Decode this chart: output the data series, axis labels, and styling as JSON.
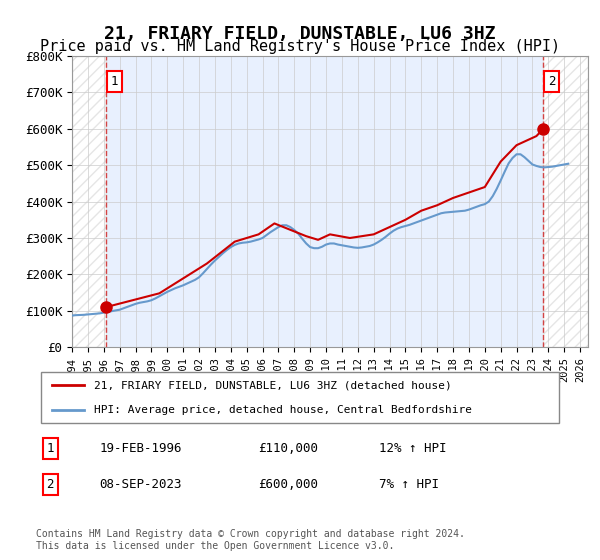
{
  "title": "21, FRIARY FIELD, DUNSTABLE, LU6 3HZ",
  "subtitle": "Price paid vs. HM Land Registry's House Price Index (HPI)",
  "title_fontsize": 13,
  "subtitle_fontsize": 11,
  "xlabel": "",
  "ylabel": "",
  "ylim": [
    0,
    800000
  ],
  "yticks": [
    0,
    100000,
    200000,
    300000,
    400000,
    500000,
    600000,
    700000,
    800000
  ],
  "ytick_labels": [
    "£0",
    "£100K",
    "£200K",
    "£300K",
    "£400K",
    "£500K",
    "£600K",
    "£700K",
    "£800K"
  ],
  "xlim_start": 1994.0,
  "xlim_end": 2026.5,
  "xticks": [
    1994,
    1995,
    1996,
    1997,
    1998,
    1999,
    2000,
    2001,
    2002,
    2003,
    2004,
    2005,
    2006,
    2007,
    2008,
    2009,
    2010,
    2011,
    2012,
    2013,
    2014,
    2015,
    2016,
    2017,
    2018,
    2019,
    2020,
    2021,
    2022,
    2023,
    2024,
    2025,
    2026
  ],
  "sale1_x": 1996.13,
  "sale1_y": 110000,
  "sale1_label": "1",
  "sale2_x": 2023.69,
  "sale2_y": 600000,
  "sale2_label": "2",
  "sale1_date": "19-FEB-1996",
  "sale1_price": "£110,000",
  "sale1_hpi": "12% ↑ HPI",
  "sale2_date": "08-SEP-2023",
  "sale2_price": "£600,000",
  "sale2_hpi": "7% ↑ HPI",
  "hatch_color": "#cccccc",
  "grid_color": "#cccccc",
  "background_color": "#ffffff",
  "plot_bg_color": "#e8f0fe",
  "red_line_color": "#cc0000",
  "blue_line_color": "#6699cc",
  "legend1_label": "21, FRIARY FIELD, DUNSTABLE, LU6 3HZ (detached house)",
  "legend2_label": "HPI: Average price, detached house, Central Bedfordshire",
  "footer": "Contains HM Land Registry data © Crown copyright and database right 2024.\nThis data is licensed under the Open Government Licence v3.0.",
  "hpi_data_x": [
    1994.0,
    1994.25,
    1994.5,
    1994.75,
    1995.0,
    1995.25,
    1995.5,
    1995.75,
    1996.0,
    1996.25,
    1996.5,
    1996.75,
    1997.0,
    1997.25,
    1997.5,
    1997.75,
    1998.0,
    1998.25,
    1998.5,
    1998.75,
    1999.0,
    1999.25,
    1999.5,
    1999.75,
    2000.0,
    2000.25,
    2000.5,
    2000.75,
    2001.0,
    2001.25,
    2001.5,
    2001.75,
    2002.0,
    2002.25,
    2002.5,
    2002.75,
    2003.0,
    2003.25,
    2003.5,
    2003.75,
    2004.0,
    2004.25,
    2004.5,
    2004.75,
    2005.0,
    2005.25,
    2005.5,
    2005.75,
    2006.0,
    2006.25,
    2006.5,
    2006.75,
    2007.0,
    2007.25,
    2007.5,
    2007.75,
    2008.0,
    2008.25,
    2008.5,
    2008.75,
    2009.0,
    2009.25,
    2009.5,
    2009.75,
    2010.0,
    2010.25,
    2010.5,
    2010.75,
    2011.0,
    2011.25,
    2011.5,
    2011.75,
    2012.0,
    2012.25,
    2012.5,
    2012.75,
    2013.0,
    2013.25,
    2013.5,
    2013.75,
    2014.0,
    2014.25,
    2014.5,
    2014.75,
    2015.0,
    2015.25,
    2015.5,
    2015.75,
    2016.0,
    2016.25,
    2016.5,
    2016.75,
    2017.0,
    2017.25,
    2017.5,
    2017.75,
    2018.0,
    2018.25,
    2018.5,
    2018.75,
    2019.0,
    2019.25,
    2019.5,
    2019.75,
    2020.0,
    2020.25,
    2020.5,
    2020.75,
    2021.0,
    2021.25,
    2021.5,
    2021.75,
    2022.0,
    2022.25,
    2022.5,
    2022.75,
    2023.0,
    2023.25,
    2023.5,
    2023.75,
    2024.0,
    2024.25,
    2024.5,
    2024.75,
    2025.0,
    2025.25
  ],
  "hpi_data_y": [
    87000,
    88000,
    88500,
    89000,
    90000,
    91000,
    92000,
    93000,
    95000,
    97000,
    99000,
    101000,
    103000,
    107000,
    111000,
    115000,
    119000,
    122000,
    124000,
    126000,
    129000,
    134000,
    140000,
    146000,
    152000,
    157000,
    162000,
    166000,
    170000,
    175000,
    180000,
    185000,
    192000,
    203000,
    215000,
    227000,
    238000,
    248000,
    258000,
    267000,
    275000,
    281000,
    285000,
    287000,
    288000,
    290000,
    293000,
    296000,
    300000,
    308000,
    316000,
    323000,
    330000,
    335000,
    335000,
    330000,
    322000,
    312000,
    298000,
    285000,
    275000,
    272000,
    272000,
    276000,
    282000,
    285000,
    285000,
    282000,
    280000,
    278000,
    276000,
    274000,
    273000,
    274000,
    276000,
    278000,
    282000,
    288000,
    295000,
    303000,
    312000,
    320000,
    326000,
    330000,
    333000,
    336000,
    340000,
    344000,
    348000,
    352000,
    356000,
    360000,
    364000,
    368000,
    370000,
    371000,
    372000,
    373000,
    374000,
    375000,
    378000,
    382000,
    386000,
    390000,
    393000,
    400000,
    415000,
    435000,
    458000,
    482000,
    505000,
    520000,
    530000,
    530000,
    522000,
    512000,
    502000,
    498000,
    495000,
    494000,
    495000,
    496000,
    498000,
    500000,
    502000,
    504000
  ],
  "price_data_x": [
    1996.13,
    1999.5,
    2002.5,
    2004.25,
    2005.75,
    2006.75,
    2008.75,
    2009.5,
    2010.25,
    2011.5,
    2013.0,
    2014.0,
    2015.0,
    2016.0,
    2017.0,
    2018.0,
    2019.0,
    2020.0,
    2021.0,
    2022.0,
    2022.75,
    2023.0,
    2023.25,
    2023.69
  ],
  "price_data_y": [
    110000,
    148000,
    230000,
    290000,
    310000,
    340000,
    305000,
    295000,
    310000,
    300000,
    310000,
    330000,
    350000,
    375000,
    390000,
    410000,
    425000,
    440000,
    510000,
    555000,
    570000,
    575000,
    580000,
    600000
  ]
}
